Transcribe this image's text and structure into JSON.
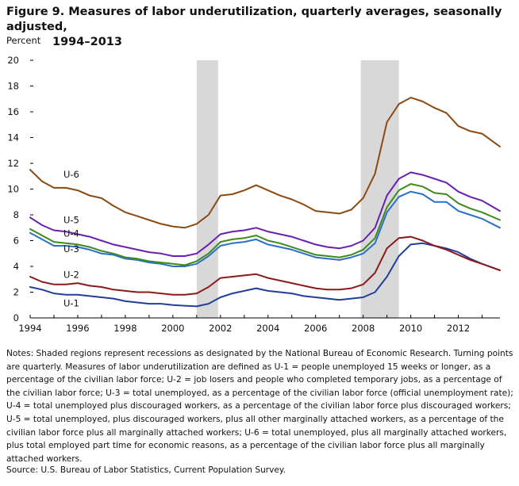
{
  "figure": {
    "title_line1": "Figure 9. Measures of labor underutilization, quarterly averages, seasonally adjusted,",
    "title_line2": "1994–2013",
    "notes": "Notes: Shaded regions represent recessions as designated by the National Bureau of Economic Research. Turning points are quarterly. Measures of labor underutilization are defined as U-1 = people unemployed 15 weeks or longer, as a percentage of the civilian labor force; U-2 = job losers and people who completed temporary jobs, as a percentage of the civilian labor force; U-3 = total unemployed, as a percentage of the civilian labor force (official unemployment rate); U-4 = total unemployed plus discouraged workers, as a percentage of the civilian labor force plus discouraged workers; U-5 = total unemployed, plus discouraged workers, plus all other marginally attached workers, as a percentage of the civilian labor force plus all marginally attached workers; U-6 = total unemployed, plus all marginally attached workers, plus total employed part time for economic reasons, as a percentage of the civilian labor force plus all marginally attached workers.",
    "source": "Source: U.S. Bureau of Labor Statistics, Current Population Survey."
  },
  "chart_data": {
    "type": "line",
    "ylabel": "Percent",
    "ylim": [
      0,
      20
    ],
    "yticks": [
      "0",
      "2",
      "4",
      "6",
      "8",
      "10",
      "12",
      "14",
      "16",
      "18",
      "20"
    ],
    "xlim": [
      1994,
      2013.75
    ],
    "xticks": [
      "1994",
      "1996",
      "1998",
      "2000",
      "2002",
      "2004",
      "2006",
      "2008",
      "2010",
      "2012"
    ],
    "grid": false,
    "recessions": [
      [
        2001.0,
        2001.9
      ],
      [
        2007.9,
        2009.5
      ]
    ],
    "colors": {
      "U-1": "#1f3f9a",
      "U-2": "#8b1a1a",
      "U-3": "#2a6fc9",
      "U-4": "#3e8a1e",
      "U-5": "#6a1fb0",
      "U-6": "#8b4a12",
      "recession": "#d8d8d8"
    },
    "series": [
      {
        "name": "U-1",
        "points": [
          [
            1994,
            2.4
          ],
          [
            1994.5,
            2.2
          ],
          [
            1995,
            1.9
          ],
          [
            1995.5,
            1.8
          ],
          [
            1996,
            1.8
          ],
          [
            1996.5,
            1.7
          ],
          [
            1997,
            1.6
          ],
          [
            1997.5,
            1.5
          ],
          [
            1998,
            1.3
          ],
          [
            1998.5,
            1.2
          ],
          [
            1999,
            1.1
          ],
          [
            1999.5,
            1.1
          ],
          [
            2000,
            1.0
          ],
          [
            2000.5,
            0.95
          ],
          [
            2001,
            0.9
          ],
          [
            2001.5,
            1.1
          ],
          [
            2002,
            1.6
          ],
          [
            2002.5,
            1.9
          ],
          [
            2003,
            2.1
          ],
          [
            2003.5,
            2.3
          ],
          [
            2004,
            2.1
          ],
          [
            2004.5,
            2.0
          ],
          [
            2005,
            1.9
          ],
          [
            2005.5,
            1.7
          ],
          [
            2006,
            1.6
          ],
          [
            2006.5,
            1.5
          ],
          [
            2007,
            1.4
          ],
          [
            2007.5,
            1.5
          ],
          [
            2008,
            1.6
          ],
          [
            2008.5,
            2.0
          ],
          [
            2009,
            3.2
          ],
          [
            2009.5,
            4.8
          ],
          [
            2010,
            5.7
          ],
          [
            2010.5,
            5.8
          ],
          [
            2011,
            5.6
          ],
          [
            2011.5,
            5.4
          ],
          [
            2012,
            5.1
          ],
          [
            2012.5,
            4.6
          ],
          [
            2013,
            4.2
          ],
          [
            2013.75,
            3.7
          ]
        ]
      },
      {
        "name": "U-2",
        "points": [
          [
            1994,
            3.2
          ],
          [
            1994.5,
            2.8
          ],
          [
            1995,
            2.6
          ],
          [
            1995.5,
            2.6
          ],
          [
            1996,
            2.7
          ],
          [
            1996.5,
            2.5
          ],
          [
            1997,
            2.4
          ],
          [
            1997.5,
            2.2
          ],
          [
            1998,
            2.1
          ],
          [
            1998.5,
            2.0
          ],
          [
            1999,
            2.0
          ],
          [
            1999.5,
            1.9
          ],
          [
            2000,
            1.8
          ],
          [
            2000.5,
            1.8
          ],
          [
            2001,
            1.9
          ],
          [
            2001.5,
            2.4
          ],
          [
            2002,
            3.1
          ],
          [
            2002.5,
            3.2
          ],
          [
            2003,
            3.3
          ],
          [
            2003.5,
            3.4
          ],
          [
            2004,
            3.1
          ],
          [
            2004.5,
            2.9
          ],
          [
            2005,
            2.7
          ],
          [
            2005.5,
            2.5
          ],
          [
            2006,
            2.3
          ],
          [
            2006.5,
            2.2
          ],
          [
            2007,
            2.2
          ],
          [
            2007.5,
            2.3
          ],
          [
            2008,
            2.6
          ],
          [
            2008.5,
            3.5
          ],
          [
            2009,
            5.4
          ],
          [
            2009.5,
            6.2
          ],
          [
            2010,
            6.3
          ],
          [
            2010.5,
            6.0
          ],
          [
            2011,
            5.6
          ],
          [
            2011.5,
            5.3
          ],
          [
            2012,
            4.9
          ],
          [
            2012.5,
            4.5
          ],
          [
            2013,
            4.2
          ],
          [
            2013.75,
            3.7
          ]
        ]
      },
      {
        "name": "U-3",
        "points": [
          [
            1994,
            6.6
          ],
          [
            1994.5,
            6.1
          ],
          [
            1995,
            5.6
          ],
          [
            1995.5,
            5.6
          ],
          [
            1996,
            5.5
          ],
          [
            1996.5,
            5.3
          ],
          [
            1997,
            5.0
          ],
          [
            1997.5,
            4.9
          ],
          [
            1998,
            4.6
          ],
          [
            1998.5,
            4.5
          ],
          [
            1999,
            4.3
          ],
          [
            1999.5,
            4.2
          ],
          [
            2000,
            4.0
          ],
          [
            2000.5,
            4.0
          ],
          [
            2001,
            4.2
          ],
          [
            2001.5,
            4.8
          ],
          [
            2002,
            5.6
          ],
          [
            2002.5,
            5.8
          ],
          [
            2003,
            5.9
          ],
          [
            2003.5,
            6.1
          ],
          [
            2004,
            5.7
          ],
          [
            2004.5,
            5.5
          ],
          [
            2005,
            5.3
          ],
          [
            2005.5,
            5.0
          ],
          [
            2006,
            4.7
          ],
          [
            2006.5,
            4.6
          ],
          [
            2007,
            4.5
          ],
          [
            2007.5,
            4.7
          ],
          [
            2008,
            5.0
          ],
          [
            2008.5,
            5.8
          ],
          [
            2009,
            8.2
          ],
          [
            2009.5,
            9.4
          ],
          [
            2010,
            9.8
          ],
          [
            2010.5,
            9.6
          ],
          [
            2011,
            9.0
          ],
          [
            2011.5,
            9.0
          ],
          [
            2012,
            8.3
          ],
          [
            2012.5,
            8.0
          ],
          [
            2013,
            7.7
          ],
          [
            2013.75,
            7.0
          ]
        ]
      },
      {
        "name": "U-4",
        "points": [
          [
            1994,
            6.9
          ],
          [
            1994.5,
            6.4
          ],
          [
            1995,
            5.9
          ],
          [
            1995.5,
            5.8
          ],
          [
            1996,
            5.7
          ],
          [
            1996.5,
            5.5
          ],
          [
            1997,
            5.2
          ],
          [
            1997.5,
            5.0
          ],
          [
            1998,
            4.7
          ],
          [
            1998.5,
            4.6
          ],
          [
            1999,
            4.4
          ],
          [
            1999.5,
            4.3
          ],
          [
            2000,
            4.2
          ],
          [
            2000.5,
            4.1
          ],
          [
            2001,
            4.4
          ],
          [
            2001.5,
            5.0
          ],
          [
            2002,
            5.9
          ],
          [
            2002.5,
            6.1
          ],
          [
            2003,
            6.2
          ],
          [
            2003.5,
            6.4
          ],
          [
            2004,
            6.0
          ],
          [
            2004.5,
            5.8
          ],
          [
            2005,
            5.5
          ],
          [
            2005.5,
            5.2
          ],
          [
            2006,
            4.9
          ],
          [
            2006.5,
            4.8
          ],
          [
            2007,
            4.7
          ],
          [
            2007.5,
            4.9
          ],
          [
            2008,
            5.3
          ],
          [
            2008.5,
            6.2
          ],
          [
            2009,
            8.6
          ],
          [
            2009.5,
            9.9
          ],
          [
            2010,
            10.4
          ],
          [
            2010.5,
            10.2
          ],
          [
            2011,
            9.7
          ],
          [
            2011.5,
            9.6
          ],
          [
            2012,
            8.9
          ],
          [
            2012.5,
            8.5
          ],
          [
            2013,
            8.2
          ],
          [
            2013.75,
            7.6
          ]
        ]
      },
      {
        "name": "U-5",
        "points": [
          [
            1994,
            7.8
          ],
          [
            1994.5,
            7.2
          ],
          [
            1995,
            6.8
          ],
          [
            1995.5,
            6.7
          ],
          [
            1996,
            6.5
          ],
          [
            1996.5,
            6.3
          ],
          [
            1997,
            6.0
          ],
          [
            1997.5,
            5.7
          ],
          [
            1998,
            5.5
          ],
          [
            1998.5,
            5.3
          ],
          [
            1999,
            5.1
          ],
          [
            1999.5,
            5.0
          ],
          [
            2000,
            4.8
          ],
          [
            2000.5,
            4.8
          ],
          [
            2001,
            5.0
          ],
          [
            2001.5,
            5.7
          ],
          [
            2002,
            6.5
          ],
          [
            2002.5,
            6.7
          ],
          [
            2003,
            6.8
          ],
          [
            2003.5,
            7.0
          ],
          [
            2004,
            6.7
          ],
          [
            2004.5,
            6.5
          ],
          [
            2005,
            6.3
          ],
          [
            2005.5,
            6.0
          ],
          [
            2006,
            5.7
          ],
          [
            2006.5,
            5.5
          ],
          [
            2007,
            5.4
          ],
          [
            2007.5,
            5.6
          ],
          [
            2008,
            6.0
          ],
          [
            2008.5,
            7.0
          ],
          [
            2009,
            9.5
          ],
          [
            2009.5,
            10.8
          ],
          [
            2010,
            11.3
          ],
          [
            2010.5,
            11.1
          ],
          [
            2011,
            10.8
          ],
          [
            2011.5,
            10.5
          ],
          [
            2012,
            9.8
          ],
          [
            2012.5,
            9.4
          ],
          [
            2013,
            9.1
          ],
          [
            2013.75,
            8.3
          ]
        ]
      },
      {
        "name": "U-6",
        "points": [
          [
            1994,
            11.5
          ],
          [
            1994.5,
            10.6
          ],
          [
            1995,
            10.1
          ],
          [
            1995.5,
            10.1
          ],
          [
            1996,
            9.9
          ],
          [
            1996.5,
            9.5
          ],
          [
            1997,
            9.3
          ],
          [
            1997.5,
            8.7
          ],
          [
            1998,
            8.2
          ],
          [
            1998.5,
            7.9
          ],
          [
            1999,
            7.6
          ],
          [
            1999.5,
            7.3
          ],
          [
            2000,
            7.1
          ],
          [
            2000.5,
            7.0
          ],
          [
            2001,
            7.3
          ],
          [
            2001.5,
            8.0
          ],
          [
            2002,
            9.5
          ],
          [
            2002.5,
            9.6
          ],
          [
            2003,
            9.9
          ],
          [
            2003.5,
            10.3
          ],
          [
            2004,
            9.9
          ],
          [
            2004.5,
            9.5
          ],
          [
            2005,
            9.2
          ],
          [
            2005.5,
            8.8
          ],
          [
            2006,
            8.3
          ],
          [
            2006.5,
            8.2
          ],
          [
            2007,
            8.1
          ],
          [
            2007.5,
            8.4
          ],
          [
            2008,
            9.3
          ],
          [
            2008.5,
            11.2
          ],
          [
            2009,
            15.2
          ],
          [
            2009.5,
            16.6
          ],
          [
            2010,
            17.1
          ],
          [
            2010.5,
            16.8
          ],
          [
            2011,
            16.3
          ],
          [
            2011.5,
            15.9
          ],
          [
            2012,
            14.9
          ],
          [
            2012.5,
            14.5
          ],
          [
            2013,
            14.3
          ],
          [
            2013.75,
            13.3
          ]
        ]
      }
    ],
    "series_labels": [
      "U-6",
      "U-5",
      "U-4",
      "U-3",
      "U-2",
      "U-1"
    ]
  }
}
